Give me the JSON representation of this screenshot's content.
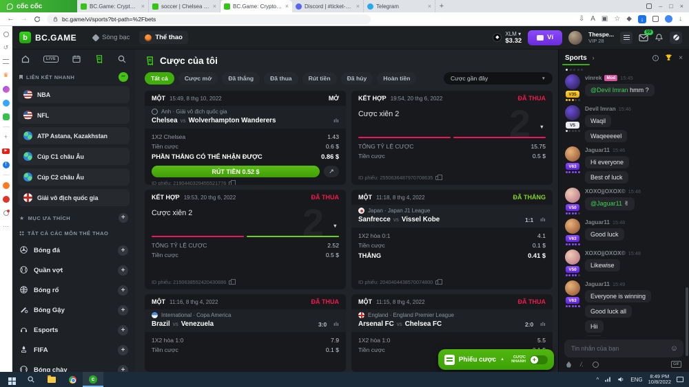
{
  "browser": {
    "logo_text": "cốc cốc",
    "new_tab_label": "+",
    "url": "bc.game/vi/sports?bt-path=%2Fbets",
    "tabs": [
      {
        "title": "BC.Game: Crypto Casino Gam",
        "icon": "bcgame",
        "active": false
      },
      {
        "title": "soccer | Chelsea FC vs Wolve",
        "icon": "bcgame",
        "active": false
      },
      {
        "title": "BC.Game: Crypto Casino Gam",
        "icon": "bcgame",
        "active": true
      },
      {
        "title": "Discord | #ticket-4481 | BC",
        "icon": "discord",
        "active": false
      },
      {
        "title": "Telegram",
        "icon": "telegram",
        "active": false
      }
    ],
    "addr_icons": [
      "save-page-icon",
      "translate-icon",
      "screenshot-icon",
      "bookmark-star-icon",
      "adblock-shield-icon",
      "active-download-icon",
      "extensions-icon",
      "profile-icon",
      "video-download-icon"
    ],
    "side_icons": [
      "settings-icon",
      "history-icon",
      "reading-list-icon",
      "hot-deals-icon",
      "messenger-icon",
      "chat-bubble-icon",
      "games-icon",
      "divider",
      "add-shortcut-icon",
      "youtube-icon",
      "facebook-icon",
      "divider",
      "shopping-icon",
      "camera-icon",
      "notification-bell-icon",
      "more-icon"
    ]
  },
  "site_header": {
    "logo": "BC.GAME",
    "logo_mark": "b",
    "nav_casino": "Sòng bạc",
    "nav_sports": "Thể thao",
    "currency": "XLM",
    "balance": "$3.32",
    "wallet": "Ví",
    "username": "Thespe...",
    "vip": "VIP 28",
    "mail_badge": "99"
  },
  "sidebar": {
    "live_label": "LIVE",
    "quick_links_header": "LIÊN KẾT NHANH",
    "favorites_header": "MỤC ƯA THÍCH",
    "all_sports_header": "TẤT CẢ CÁC MÔN THỂ THAO",
    "quick_links": [
      {
        "label": "NBA",
        "icon": "usa"
      },
      {
        "label": "NFL",
        "icon": "usa"
      },
      {
        "label": "ATP Astana, Kazakhstan",
        "icon": "globe"
      },
      {
        "label": "Cúp C1 châu Âu",
        "icon": "globe"
      },
      {
        "label": "Cúp C2 châu Âu",
        "icon": "globe"
      },
      {
        "label": "Giải vô địch quốc gia",
        "icon": "england"
      }
    ],
    "sports": [
      {
        "label": "Bóng đá",
        "icon": "football"
      },
      {
        "label": "Quần vợt",
        "icon": "tennis"
      },
      {
        "label": "Bóng rổ",
        "icon": "basketball"
      },
      {
        "label": "Bóng Gậy",
        "icon": "cricket"
      },
      {
        "label": "Esports",
        "icon": "esports"
      },
      {
        "label": "FIFA",
        "icon": "fifa"
      },
      {
        "label": "Bóng chày",
        "icon": "baseball"
      }
    ]
  },
  "main": {
    "title": "Cược của tôi",
    "vs_label": "vs",
    "sort_label": "Cược gần đây",
    "filters": [
      {
        "label": "Tất cả",
        "active": true
      },
      {
        "label": "Cược mở",
        "active": false
      },
      {
        "label": "Đã thắng",
        "active": false
      },
      {
        "label": "Đã thua",
        "active": false
      },
      {
        "label": "Rút tiền",
        "active": false
      },
      {
        "label": "Đã hủy",
        "active": false
      },
      {
        "label": "Hoàn tiền",
        "active": false
      }
    ],
    "cards": [
      {
        "kind": "single",
        "type": "MỘT",
        "time": "15:49, 8 thg 10, 2022",
        "status": "MỞ",
        "status_kind": "open",
        "league": "Anh · Giải vô địch quốc gia",
        "flag": "globe",
        "home": "Chelsea",
        "away": "Wolverhampton Wanderers",
        "score": "",
        "rows": [
          {
            "label": "1X2 Chelsea",
            "value": "1.43"
          },
          {
            "label": "Tiền cược",
            "value": "0.6 $"
          }
        ],
        "win_label": "PHẦN THẮNG CÓ THỂ NHẬN ĐƯỢC",
        "win_value": "0.86 $",
        "cashout_label": "RÚT TIỀN 0.52 $",
        "bet_id": "ID phiếu: 2190440329455521776"
      },
      {
        "kind": "combo",
        "type": "KẾT HỢP",
        "time": "19:54, 20 thg 6, 2022",
        "status": "ĐÃ THUA",
        "status_kind": "lost",
        "combo_title": "Cược xiên 2",
        "combo_count": "2",
        "legs": [
          "lost",
          "lost"
        ],
        "rows": [
          {
            "label": "TỔNG TỶ LỆ CƯỢC",
            "value": "15.75"
          },
          {
            "label": "Tiền cược",
            "value": "0.5 $"
          }
        ],
        "bet_id": "ID phiếu: 2550636487970708635"
      },
      {
        "kind": "combo",
        "type": "KẾT HỢP",
        "time": "19:53, 20 thg 6, 2022",
        "status": "ĐÃ THUA",
        "status_kind": "lost",
        "combo_title": "Cược xiên 2",
        "combo_count": "2",
        "legs": [
          "lost",
          "won"
        ],
        "rows": [
          {
            "label": "TỔNG TỶ LỆ CƯỢC",
            "value": "2.52"
          },
          {
            "label": "Tiền cược",
            "value": "0.5 $"
          }
        ],
        "bet_id": "ID phiếu: 2150638552420430886"
      },
      {
        "kind": "single",
        "type": "MỘT",
        "time": "11:18, 8 thg 4, 2022",
        "status": "ĐÃ THẮNG",
        "status_kind": "won",
        "league": "Japan · Japan J1 League",
        "flag": "japan",
        "home": "Sanfrecce",
        "away": "Vissel Kobe",
        "score": "1:1",
        "rows": [
          {
            "label": "1X2 hòa  0:1",
            "value": "4.1"
          },
          {
            "label": "Tiền cược",
            "value": "0.1 $"
          }
        ],
        "win_label": "THẮNG",
        "win_value": "0.41 $",
        "bet_id": "ID phiếu: 2040404438570074800"
      },
      {
        "kind": "single",
        "type": "MỘT",
        "time": "11:16, 8 thg 4, 2022",
        "status": "ĐÃ THUA",
        "status_kind": "lost",
        "league": "International · Copa America",
        "flag": "int",
        "home": "Brazil",
        "away": "Venezuela",
        "score": "3:0",
        "rows": [
          {
            "label": "1X2 hòa  1:0",
            "value": "7.9"
          },
          {
            "label": "Tiền cược",
            "value": "0.1 $"
          }
        ]
      },
      {
        "kind": "single",
        "type": "MỘT",
        "time": "11:15, 8 thg 4, 2022",
        "status": "ĐÃ THUA",
        "status_kind": "lost",
        "league": "England · England Premier League",
        "flag": "england",
        "home": "Arsenal FC",
        "away": "Chelsea FC",
        "score": "2:0",
        "rows": [
          {
            "label": "1X2 hòa  1:0",
            "value": "5.5"
          },
          {
            "label": "Tiền cược",
            "value": "0.1 $"
          }
        ]
      }
    ],
    "betslip": {
      "label": "Phiếu cược",
      "quick_top": "CƯỢC",
      "quick_bottom": "NHANH"
    }
  },
  "chat": {
    "tab_label": "Sports",
    "input_placeholder": "Tin nhắn của bạn",
    "gif_label": "GIF",
    "groups": [
      {
        "user": "vinrek",
        "mod": "Mod",
        "time": "15:45",
        "badge": "V35",
        "badge_color": "gold",
        "stars": 3,
        "avatar": "cat-purple",
        "msgs": [
          {
            "m": "@Devil Imran",
            "t": " hmm ?"
          }
        ]
      },
      {
        "user": "Devil Imran",
        "time": "15:46",
        "badge": "V5",
        "badge_color": "silver",
        "stars": 1,
        "avatar": "cat-purple",
        "msgs": [
          {
            "t": "Waqil"
          },
          {
            "t": "Waqeeeeel"
          }
        ]
      },
      {
        "user": "Jaguar11",
        "time": "15:46",
        "badge": "V63",
        "badge_color": "purple",
        "stars": 5,
        "avatar": "man-tan",
        "msgs": [
          {
            "t": "Hi everyone"
          },
          {
            "t": "Best of luck"
          }
        ]
      },
      {
        "user": "XOXOjjOXOX©",
        "time": "15:48",
        "badge": "V50",
        "badge_color": "purple",
        "stars": 4,
        "avatar": "girl-pink",
        "msgs": [
          {
            "m": "@Jaguar11",
            "t": " ✌"
          }
        ]
      },
      {
        "user": "Jaguar11",
        "time": "15:48",
        "badge": "V63",
        "badge_color": "purple",
        "stars": 5,
        "avatar": "man-tan",
        "msgs": [
          {
            "t": "Good luck"
          }
        ]
      },
      {
        "user": "XOXOjjOXOX©",
        "time": "15:48",
        "badge": "V50",
        "badge_color": "purple",
        "stars": 4,
        "avatar": "girl-pink",
        "msgs": [
          {
            "t": "Likewise"
          }
        ]
      },
      {
        "user": "Jaguar11",
        "time": "15:49",
        "badge": "V63",
        "badge_color": "purple",
        "stars": 5,
        "avatar": "man-tan",
        "msgs": [
          {
            "t": "Everyone is winning"
          },
          {
            "t": "Good luck all"
          },
          {
            "t": "Hii"
          },
          {
            "t": "Hii"
          }
        ]
      }
    ]
  },
  "taskbar": {
    "lang": "ENG",
    "time": "8:49 PM",
    "date": "10/8/2022"
  }
}
